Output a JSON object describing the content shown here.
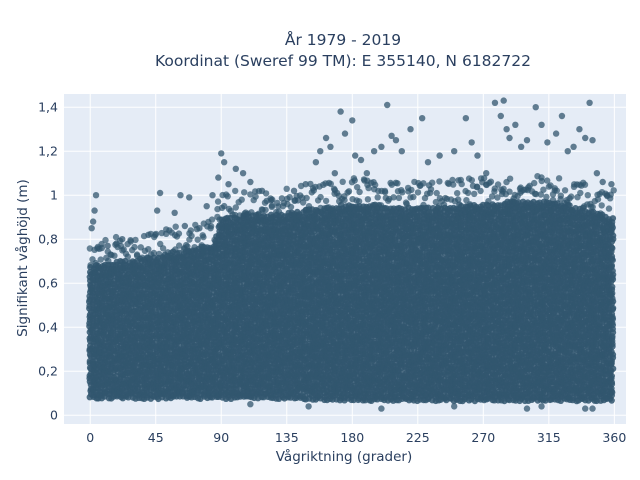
{
  "chart_data": {
    "type": "scatter",
    "title": "År 1979 - 2019",
    "subtitle": "Koordinat (Sweref 99 TM): E 355140, N 6182722",
    "xlabel": "Vågriktning (grader)",
    "ylabel": "Signifikant våghöjd (m)",
    "xlim": [
      -18,
      368
    ],
    "ylim": [
      -0.04,
      1.46
    ],
    "x_ticks": [
      0,
      45,
      90,
      135,
      180,
      225,
      270,
      315,
      360
    ],
    "x_tick_labels": [
      "0",
      "45",
      "90",
      "135",
      "180",
      "225",
      "270",
      "315",
      "360"
    ],
    "y_ticks": [
      0,
      0.2,
      0.4,
      0.6,
      0.8,
      1.0,
      1.2,
      1.4
    ],
    "y_tick_labels": [
      "0",
      "0,2",
      "0,4",
      "0,6",
      "0,8",
      "1",
      "1,2",
      "1,4"
    ],
    "grid": true,
    "legend": "none",
    "colors": {
      "marker": "#31566e",
      "plot_bg": "#e5ecf6",
      "grid": "#ffffff",
      "text": "#2a3f5f"
    },
    "dense_band": [
      {
        "x": 0,
        "y_min": 0.08,
        "y_max": 0.68
      },
      {
        "x": 45,
        "y_min": 0.08,
        "y_max": 0.72
      },
      {
        "x": 85,
        "y_min": 0.08,
        "y_max": 0.78
      },
      {
        "x": 90,
        "y_min": 0.08,
        "y_max": 0.9
      },
      {
        "x": 135,
        "y_min": 0.08,
        "y_max": 0.92
      },
      {
        "x": 180,
        "y_min": 0.07,
        "y_max": 0.96
      },
      {
        "x": 225,
        "y_min": 0.07,
        "y_max": 0.94
      },
      {
        "x": 270,
        "y_min": 0.07,
        "y_max": 0.96
      },
      {
        "x": 315,
        "y_min": 0.07,
        "y_max": 0.98
      },
      {
        "x": 360,
        "y_min": 0.07,
        "y_max": 0.9
      }
    ],
    "outlier_points": [
      {
        "x": 1,
        "y": 0.85
      },
      {
        "x": 3,
        "y": 0.93
      },
      {
        "x": 4,
        "y": 1.0
      },
      {
        "x": 2,
        "y": 0.88
      },
      {
        "x": 8,
        "y": 0.76
      },
      {
        "x": 12,
        "y": 0.77
      },
      {
        "x": 18,
        "y": 0.78
      },
      {
        "x": 22,
        "y": 0.8
      },
      {
        "x": 40,
        "y": 0.82
      },
      {
        "x": 46,
        "y": 0.93
      },
      {
        "x": 48,
        "y": 1.01
      },
      {
        "x": 58,
        "y": 0.92
      },
      {
        "x": 62,
        "y": 1.0
      },
      {
        "x": 65,
        "y": 0.86
      },
      {
        "x": 68,
        "y": 0.99
      },
      {
        "x": 75,
        "y": 0.85
      },
      {
        "x": 80,
        "y": 0.95
      },
      {
        "x": 84,
        "y": 1.0
      },
      {
        "x": 88,
        "y": 1.08
      },
      {
        "x": 90,
        "y": 1.19
      },
      {
        "x": 92,
        "y": 1.15
      },
      {
        "x": 95,
        "y": 1.05
      },
      {
        "x": 100,
        "y": 1.12
      },
      {
        "x": 105,
        "y": 1.1
      },
      {
        "x": 110,
        "y": 1.06
      },
      {
        "x": 118,
        "y": 1.02
      },
      {
        "x": 125,
        "y": 0.98
      },
      {
        "x": 140,
        "y": 1.02
      },
      {
        "x": 148,
        "y": 1.05
      },
      {
        "x": 155,
        "y": 1.15
      },
      {
        "x": 158,
        "y": 1.2
      },
      {
        "x": 162,
        "y": 1.26
      },
      {
        "x": 165,
        "y": 1.22
      },
      {
        "x": 168,
        "y": 1.1
      },
      {
        "x": 172,
        "y": 1.38
      },
      {
        "x": 175,
        "y": 1.28
      },
      {
        "x": 180,
        "y": 1.34
      },
      {
        "x": 182,
        "y": 1.18
      },
      {
        "x": 186,
        "y": 1.16
      },
      {
        "x": 190,
        "y": 1.1
      },
      {
        "x": 195,
        "y": 1.2
      },
      {
        "x": 200,
        "y": 1.22
      },
      {
        "x": 204,
        "y": 1.41
      },
      {
        "x": 207,
        "y": 1.27
      },
      {
        "x": 210,
        "y": 1.25
      },
      {
        "x": 214,
        "y": 1.2
      },
      {
        "x": 220,
        "y": 1.3
      },
      {
        "x": 228,
        "y": 1.35
      },
      {
        "x": 232,
        "y": 1.15
      },
      {
        "x": 240,
        "y": 1.18
      },
      {
        "x": 250,
        "y": 1.2
      },
      {
        "x": 258,
        "y": 1.35
      },
      {
        "x": 262,
        "y": 1.24
      },
      {
        "x": 266,
        "y": 1.18
      },
      {
        "x": 272,
        "y": 1.1
      },
      {
        "x": 278,
        "y": 1.42
      },
      {
        "x": 282,
        "y": 1.36
      },
      {
        "x": 284,
        "y": 1.43
      },
      {
        "x": 286,
        "y": 1.3
      },
      {
        "x": 288,
        "y": 1.26
      },
      {
        "x": 292,
        "y": 1.32
      },
      {
        "x": 296,
        "y": 1.22
      },
      {
        "x": 300,
        "y": 1.25
      },
      {
        "x": 306,
        "y": 1.4
      },
      {
        "x": 310,
        "y": 1.32
      },
      {
        "x": 314,
        "y": 1.24
      },
      {
        "x": 320,
        "y": 1.28
      },
      {
        "x": 324,
        "y": 1.36
      },
      {
        "x": 328,
        "y": 1.2
      },
      {
        "x": 332,
        "y": 1.22
      },
      {
        "x": 336,
        "y": 1.3
      },
      {
        "x": 340,
        "y": 1.26
      },
      {
        "x": 343,
        "y": 1.42
      },
      {
        "x": 345,
        "y": 1.25
      },
      {
        "x": 348,
        "y": 1.1
      },
      {
        "x": 352,
        "y": 1.06
      },
      {
        "x": 355,
        "y": 1.0
      },
      {
        "x": 358,
        "y": 1.05
      },
      {
        "x": 300,
        "y": 0.03
      },
      {
        "x": 310,
        "y": 0.04
      },
      {
        "x": 340,
        "y": 0.03
      },
      {
        "x": 345,
        "y": 0.03
      },
      {
        "x": 200,
        "y": 0.03
      },
      {
        "x": 250,
        "y": 0.04
      },
      {
        "x": 150,
        "y": 0.04
      },
      {
        "x": 110,
        "y": 0.05
      }
    ]
  }
}
